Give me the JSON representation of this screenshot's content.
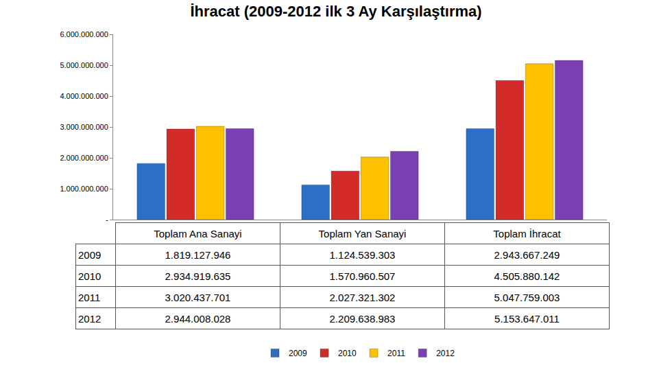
{
  "chart_data": {
    "type": "bar",
    "title": "İhracat (2009-2012 ilk 3 Ay Karşılaştırma)",
    "categories": [
      "Toplam Ana Sanayi",
      "Toplam Yan Sanayi",
      "Toplam İhracat"
    ],
    "series": [
      {
        "name": "2009",
        "color": "#2f6ec6",
        "values": [
          1819127946,
          1124539303,
          2943667249
        ],
        "value_labels": [
          "1.819.127.946",
          "1.124.539.303",
          "2.943.667.249"
        ]
      },
      {
        "name": "2010",
        "color": "#d32a2a",
        "values": [
          2934919635,
          1570960507,
          4505880142
        ],
        "value_labels": [
          "2.934.919.635",
          "1.570.960.507",
          "4.505.880.142"
        ]
      },
      {
        "name": "2011",
        "color": "#ffc000",
        "values": [
          3020437701,
          2027321302,
          5047759003
        ],
        "value_labels": [
          "3.020.437.701",
          "2.027.321.302",
          "5.047.759.003"
        ]
      },
      {
        "name": "2012",
        "color": "#7b3fb3",
        "values": [
          2944008028,
          2209638983,
          5153647011
        ],
        "value_labels": [
          "2.944.008.028",
          "2.209.638.983",
          "5.153.647.011"
        ]
      }
    ],
    "ylim": [
      0,
      6000000000
    ],
    "yticks": [
      {
        "value": 0,
        "label": "-"
      },
      {
        "value": 1000000000,
        "label": "1.000.000.000"
      },
      {
        "value": 2000000000,
        "label": "2.000.000.000"
      },
      {
        "value": 3000000000,
        "label": "3.000.000.000"
      },
      {
        "value": 4000000000,
        "label": "4.000.000.000"
      },
      {
        "value": 5000000000,
        "label": "5.000.000.000"
      },
      {
        "value": 6000000000,
        "label": "6.000.000.000"
      }
    ],
    "grid": false,
    "legend": "bottom"
  }
}
